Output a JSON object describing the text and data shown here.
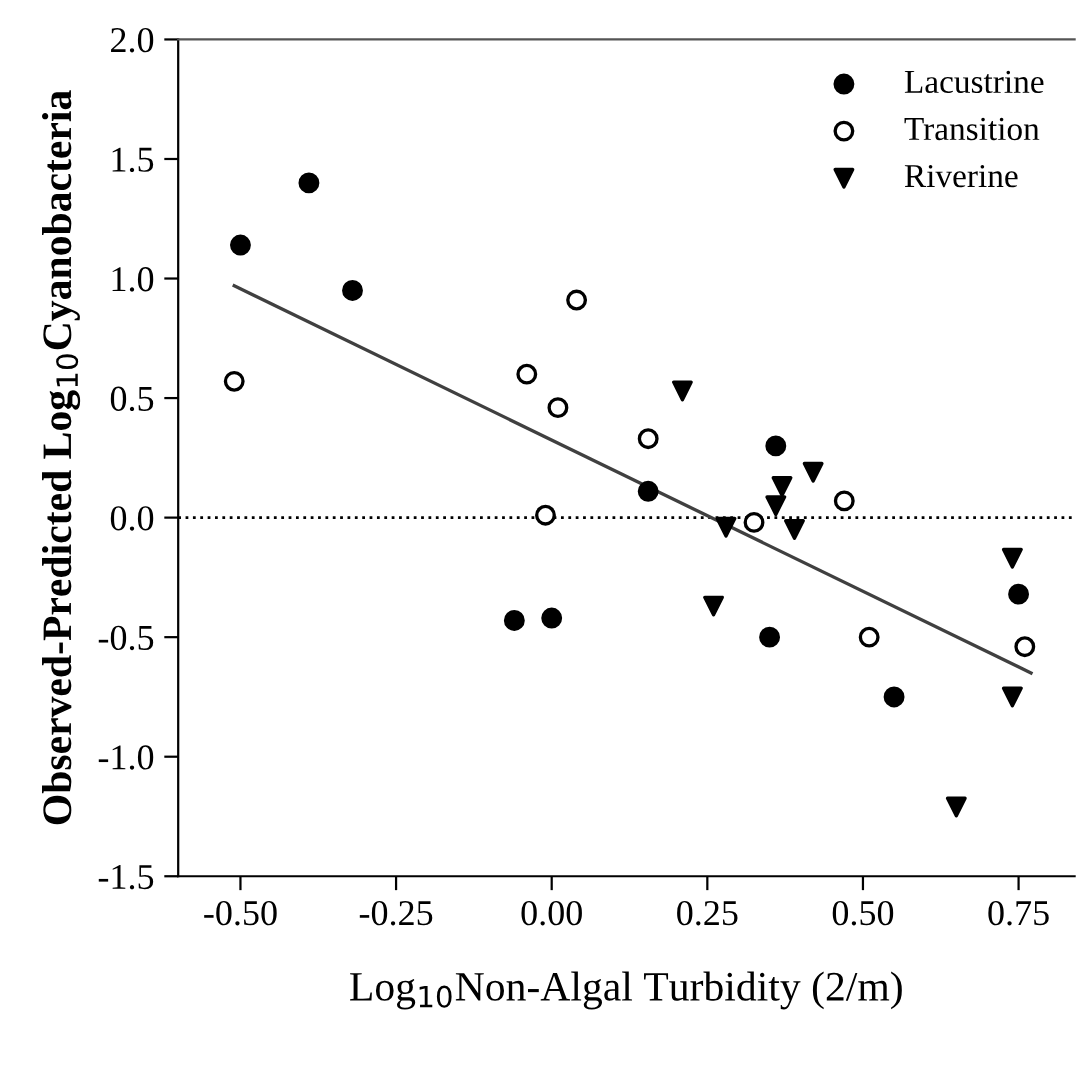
{
  "chart_data": {
    "type": "scatter",
    "xlabel": "Log$_{10}$Non-Algal Turbidity (2/m)",
    "ylabel": "Observed-Predicted Log$_{10}$Cyanobacteria",
    "xlim": [
      -0.6,
      0.84
    ],
    "ylim": [
      -1.5,
      2.0
    ],
    "xticks": [
      {
        "value": -0.5,
        "label": "-0.50"
      },
      {
        "value": -0.25,
        "label": "-0.25"
      },
      {
        "value": 0,
        "label": "0.00"
      },
      {
        "value": 0.25,
        "label": "0.25"
      },
      {
        "value": 0.5,
        "label": "0.50"
      },
      {
        "value": 0.75,
        "label": "0.75"
      }
    ],
    "yticks": [
      -1.5,
      {
        "value": -1,
        "label": "-1.0"
      },
      -0.5,
      {
        "value": 0,
        "label": "0.0"
      },
      0.5,
      {
        "value": 1,
        "label": "1.0"
      },
      1.5,
      {
        "value": 2,
        "label": "2.0"
      }
    ],
    "grid": false,
    "legend": "top right",
    "ref_lines": [
      {
        "axis": "y",
        "value": 0,
        "line_style": "dotted",
        "color": "#000000"
      }
    ],
    "series": [
      {
        "name": "Lacustrine",
        "marker": "circle",
        "color": "#000000",
        "x": [
          -0.5,
          -0.39,
          -0.32,
          -0.06,
          0.0,
          0.155,
          0.36,
          0.35,
          0.55,
          0.75
        ],
        "values": [
          1.14,
          1.4,
          0.95,
          -0.43,
          -0.42,
          0.11,
          0.3,
          -0.5,
          -0.75,
          -0.32
        ]
      },
      {
        "name": "Transition",
        "marker": "circle",
        "color": "#ffffff",
        "x": [
          -0.51,
          -0.04,
          0.01,
          0.04,
          -0.01,
          0.155,
          0.325,
          0.47,
          0.51,
          0.76
        ],
        "values": [
          0.57,
          0.6,
          0.46,
          0.91,
          0.01,
          0.33,
          -0.02,
          0.07,
          -0.5,
          -0.54
        ]
      },
      {
        "name": "Riverine",
        "marker": "triangle",
        "color": "#000000",
        "x": [
          0.21,
          0.26,
          0.28,
          0.36,
          0.37,
          0.39,
          0.42,
          0.74,
          0.74,
          0.65
        ],
        "values": [
          0.53,
          -0.37,
          -0.04,
          0.05,
          0.13,
          -0.05,
          0.19,
          -0.17,
          -0.75,
          -1.21
        ]
      },
      {
        "type": "line",
        "marker": "none",
        "color": "#404040",
        "x": [
          -0.51,
          0.77
        ],
        "values": [
          0.97,
          -0.65
        ]
      }
    ]
  }
}
